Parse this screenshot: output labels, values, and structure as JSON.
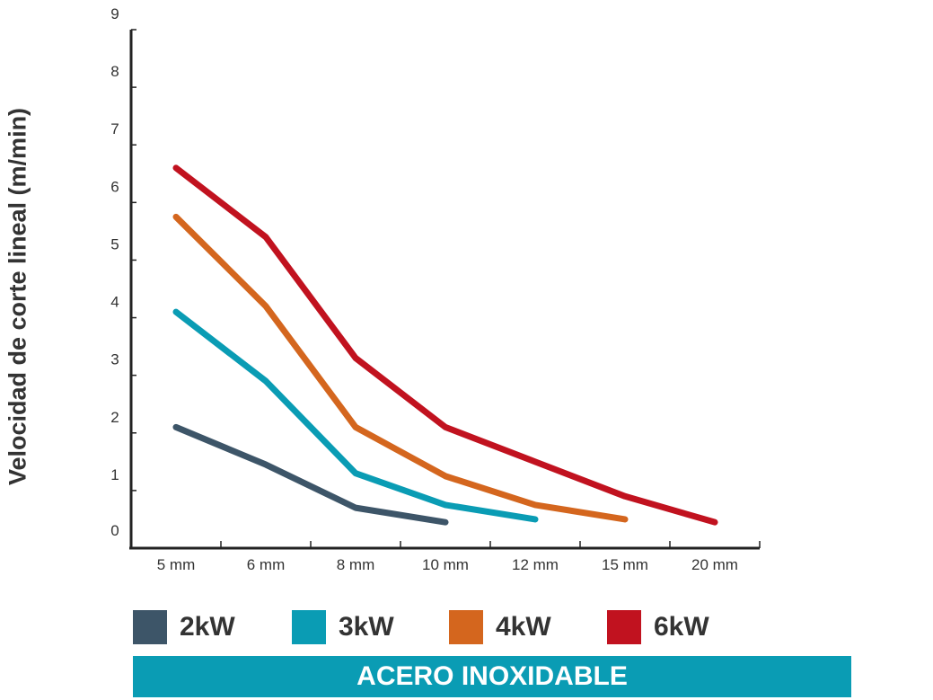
{
  "chart_data": {
    "type": "line",
    "categories": [
      "5 mm",
      "6 mm",
      "8 mm",
      "10 mm",
      "12 mm",
      "15 mm",
      "20 mm"
    ],
    "ylabel": "Velocidad de corte lineal (m/min)",
    "ylim": [
      0,
      9
    ],
    "yticks": [
      "0",
      "1",
      "2",
      "3",
      "4",
      "5",
      "6",
      "7",
      "8",
      "9"
    ],
    "series": [
      {
        "name": "2kW",
        "color": "#3d5568",
        "values": [
          2.1,
          1.45,
          0.7,
          0.45,
          null,
          null,
          null
        ]
      },
      {
        "name": "3kW",
        "color": "#0a9cb4",
        "values": [
          4.1,
          2.9,
          1.3,
          0.75,
          0.5,
          null,
          null
        ]
      },
      {
        "name": "4kW",
        "color": "#d4661e",
        "values": [
          5.75,
          4.2,
          2.1,
          1.25,
          0.75,
          0.5,
          null
        ]
      },
      {
        "name": "6kW",
        "color": "#c1121f",
        "values": [
          6.6,
          5.4,
          3.3,
          2.1,
          1.5,
          0.9,
          0.45
        ]
      }
    ],
    "legend_position": "bottom",
    "grid": false
  },
  "footer": {
    "material": "ACERO INOXIDABLE"
  }
}
